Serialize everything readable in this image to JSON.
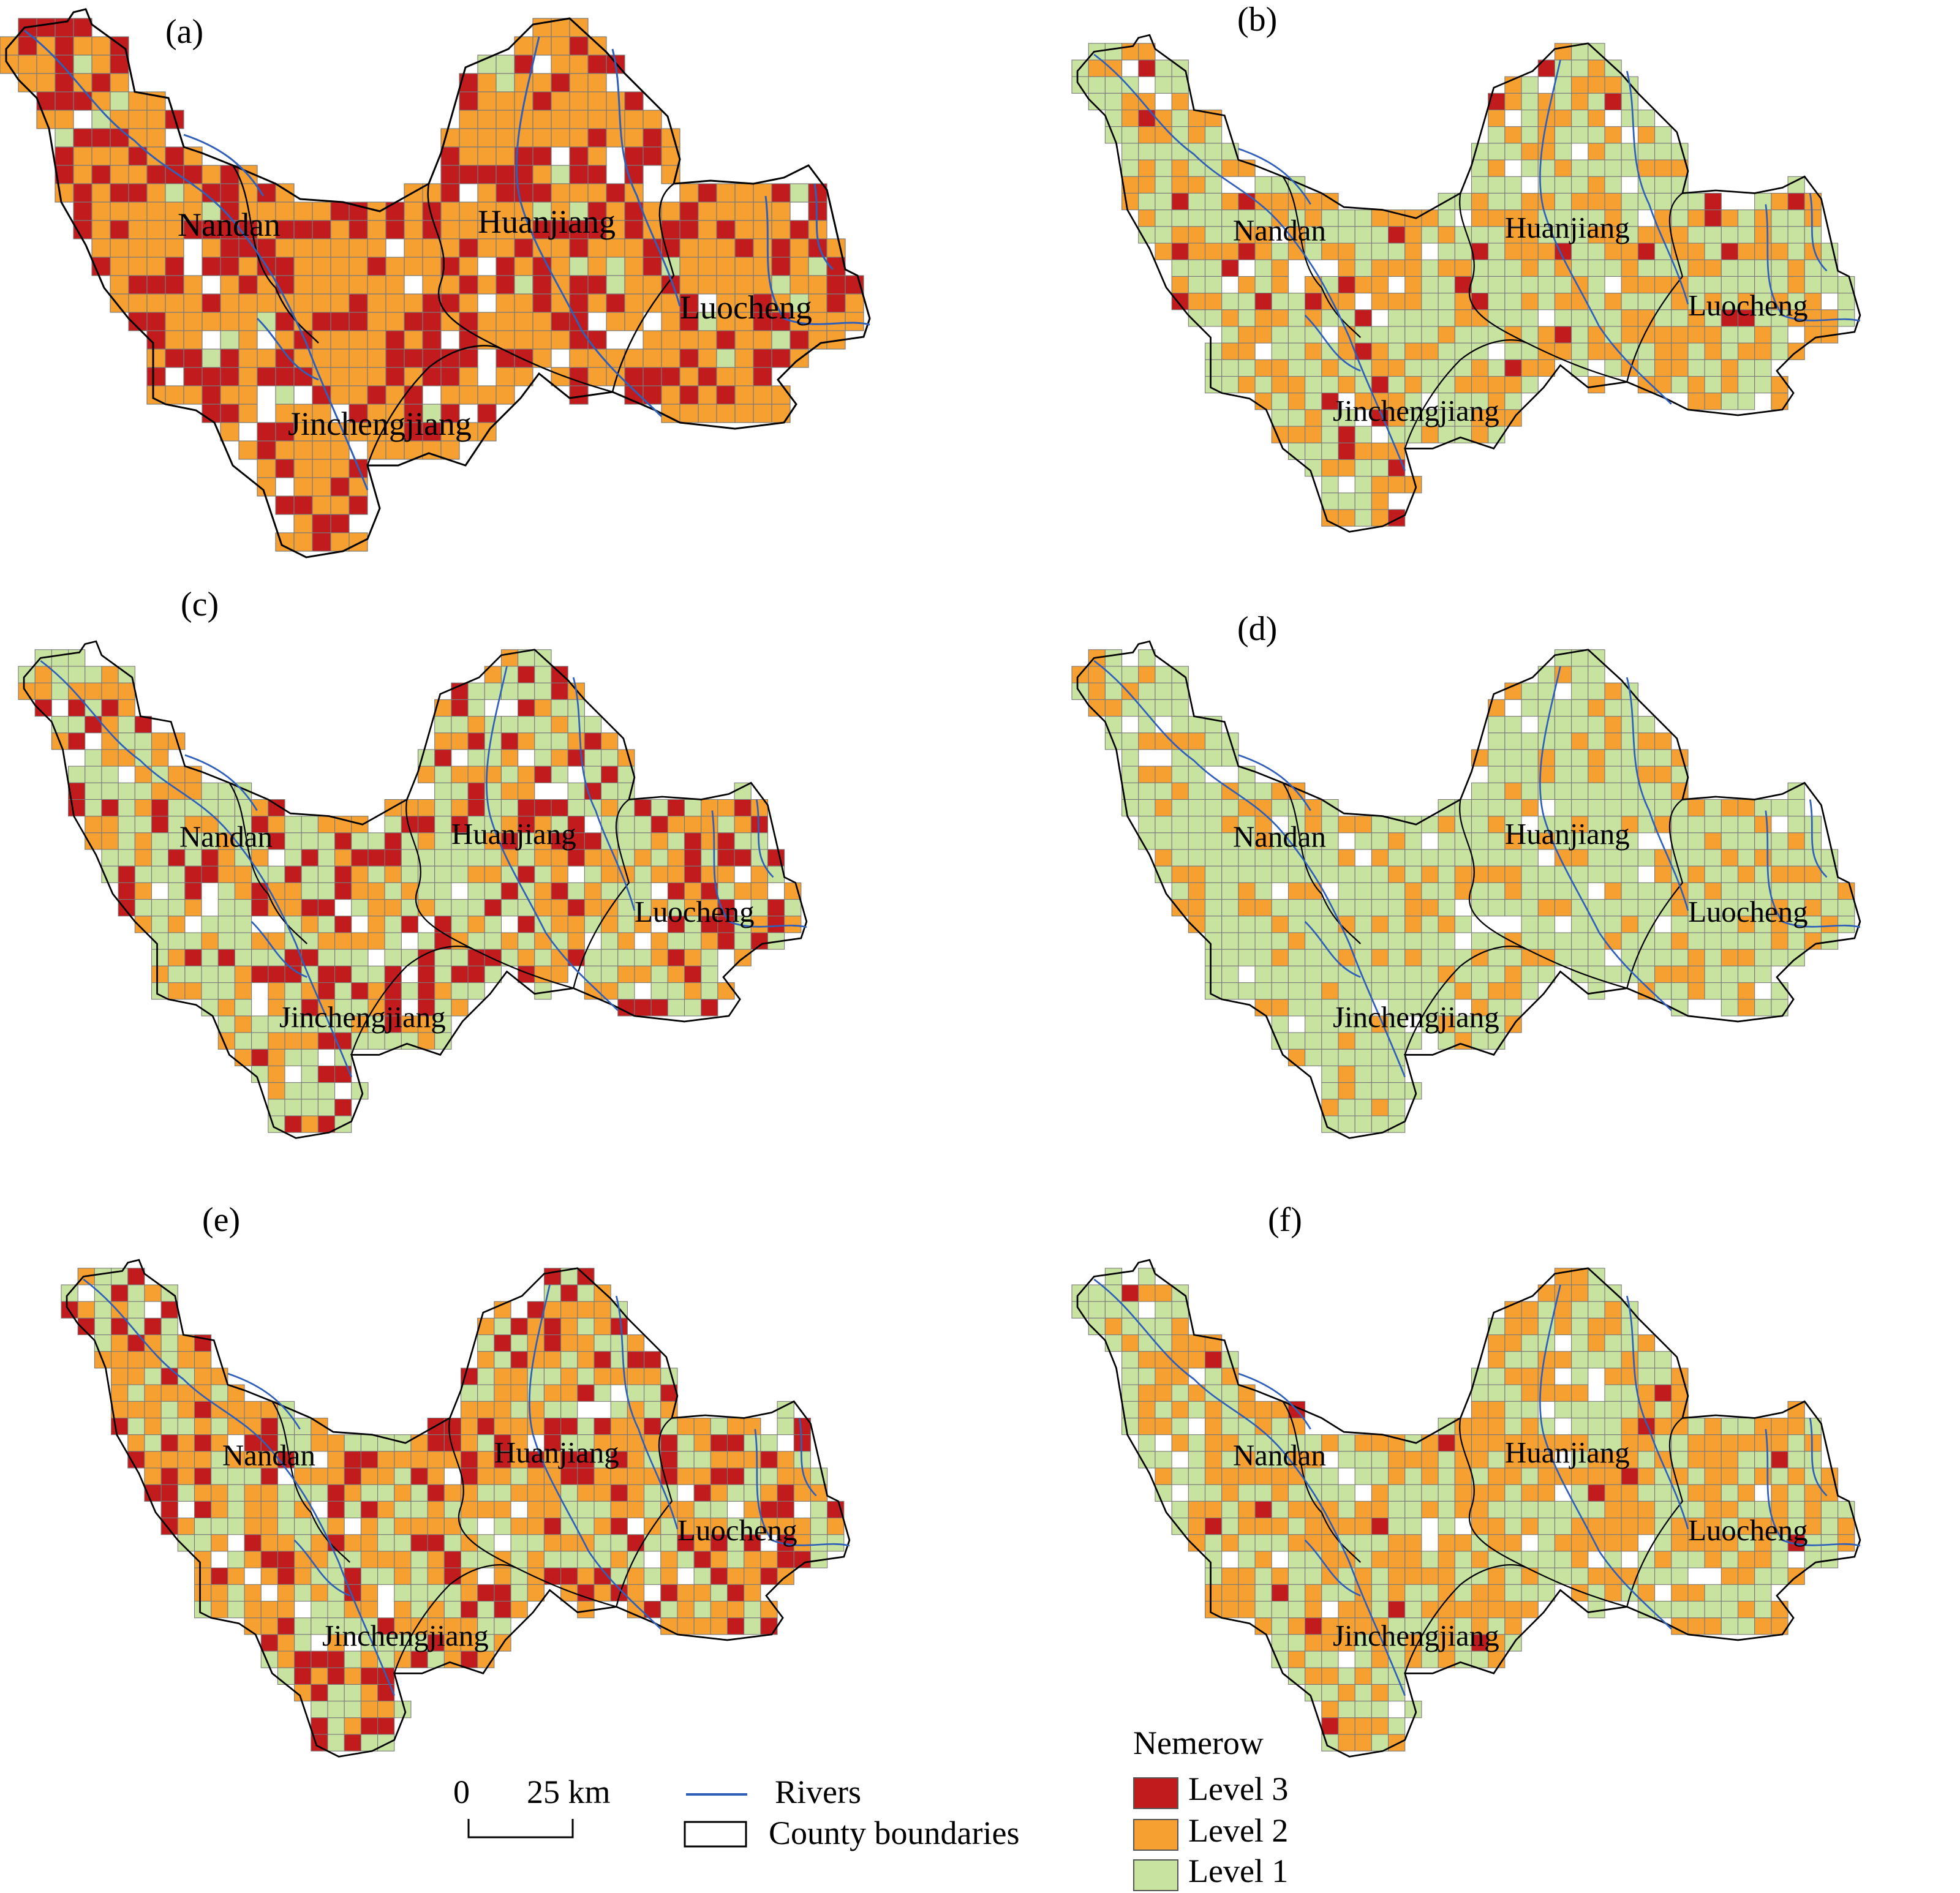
{
  "panels": [
    {
      "label": "(a)",
      "dist": [
        0.36,
        0.6,
        0.04
      ]
    },
    {
      "label": "(b)",
      "dist": [
        0.05,
        0.4,
        0.55
      ]
    },
    {
      "label": "(c)",
      "dist": [
        0.22,
        0.28,
        0.5
      ]
    },
    {
      "label": "(d)",
      "dist": [
        0.0,
        0.22,
        0.78
      ]
    },
    {
      "label": "(e)",
      "dist": [
        0.24,
        0.46,
        0.3
      ]
    },
    {
      "label": "(f)",
      "dist": [
        0.04,
        0.5,
        0.46
      ]
    }
  ],
  "counties": [
    "Nandan",
    "Huanjiang",
    "Luocheng",
    "Jinchengjiang"
  ],
  "legend": {
    "title": "Nemerow",
    "items": [
      {
        "label": "Level 3",
        "color": "#c21b1d"
      },
      {
        "label": "Level 2",
        "color": "#f5a030"
      },
      {
        "label": "Level 1",
        "color": "#c8e3a0"
      }
    ]
  },
  "scale_bar": {
    "start": "0",
    "end": "25 km"
  },
  "map_legend": {
    "rivers": "Rivers",
    "boundaries": "County boundaries"
  },
  "colors": {
    "river": "#2f5fb8",
    "boundary": "#000000",
    "grid_stroke": "#7a7a7a"
  }
}
